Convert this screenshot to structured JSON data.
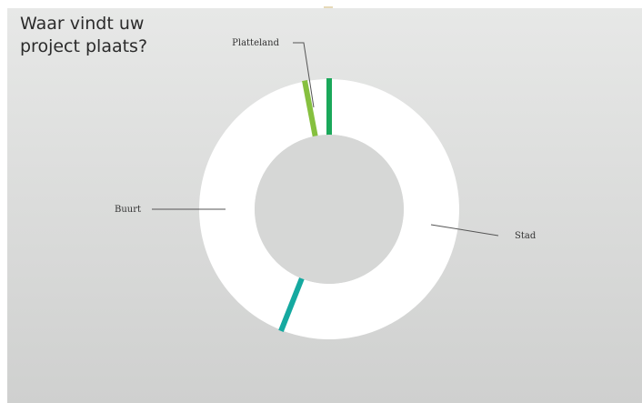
{
  "title": "Waar vindt uw project plaats?",
  "chart_data": {
    "type": "pie",
    "variant": "donut",
    "title": "Waar vindt uw project plaats?",
    "categories": [
      "Stad",
      "Buurt",
      "Platteland"
    ],
    "values": [
      56,
      41,
      3
    ],
    "unit": "%",
    "slice_color": "#ffffff",
    "separator_colors": [
      "#15a9a0",
      "#86c03f",
      "#1aa85a"
    ],
    "hole_color": "#d6d7d6",
    "legend": "none (leader-line labels)"
  }
}
